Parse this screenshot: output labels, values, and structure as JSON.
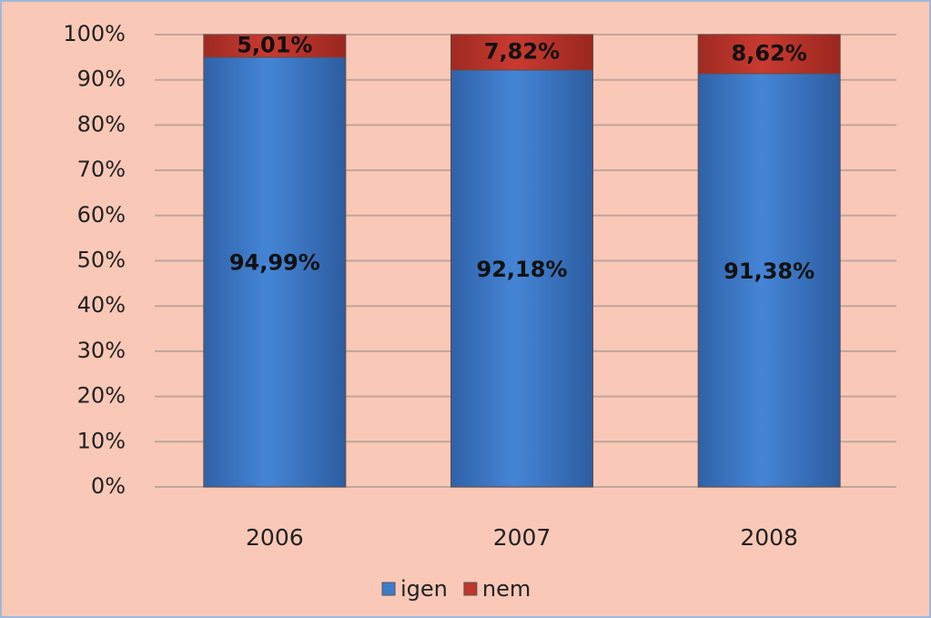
{
  "chart_data": {
    "type": "stacked_bar",
    "categories": [
      "2006",
      "2007",
      "2008"
    ],
    "series": [
      {
        "name": "igen",
        "color": "#3f7bcc",
        "values": [
          94.99,
          92.18,
          91.38
        ],
        "value_labels": [
          "94,99%",
          "92,18%",
          "91,38%"
        ]
      },
      {
        "name": "nem",
        "color": "#c0362c",
        "values": [
          5.01,
          7.82,
          8.62
        ],
        "value_labels": [
          "5,01%",
          "7,82%",
          "8,62%"
        ]
      }
    ],
    "ylim": [
      0,
      100
    ],
    "yticks": [
      {
        "value": 0,
        "label": "0%"
      },
      {
        "value": 10,
        "label": "10%"
      },
      {
        "value": 20,
        "label": "20%"
      },
      {
        "value": 30,
        "label": "30%"
      },
      {
        "value": 40,
        "label": "40%"
      },
      {
        "value": 50,
        "label": "50%"
      },
      {
        "value": 60,
        "label": "60%"
      },
      {
        "value": 70,
        "label": "70%"
      },
      {
        "value": 80,
        "label": "80%"
      },
      {
        "value": 90,
        "label": "90%"
      },
      {
        "value": 100,
        "label": "100%"
      }
    ],
    "grid": true,
    "legend": "bottom"
  }
}
